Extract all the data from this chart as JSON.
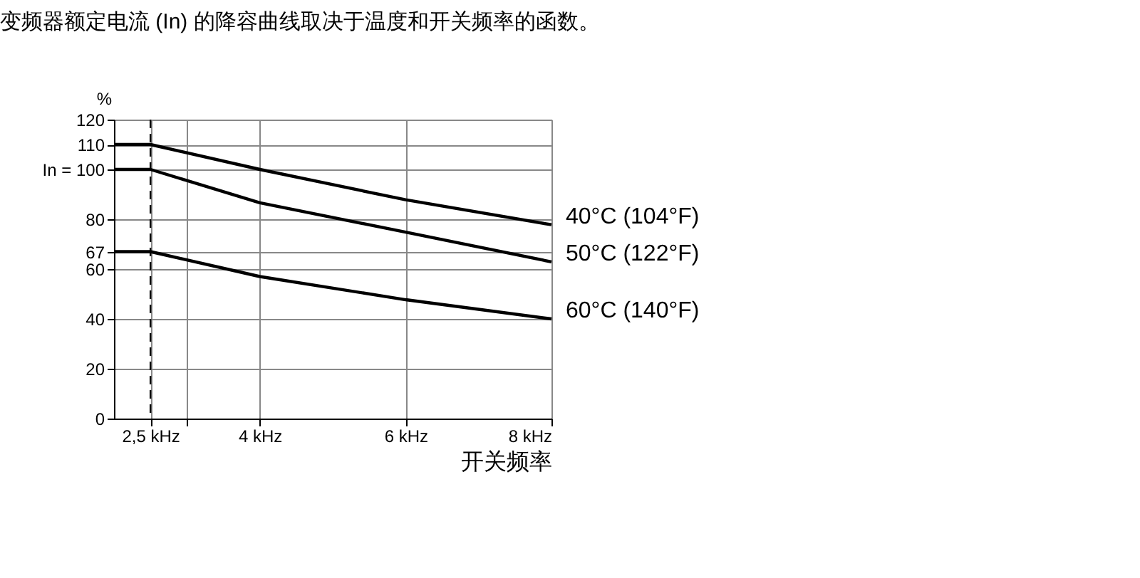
{
  "chart_data": {
    "type": "line",
    "title": "变频器额定电流 (In) 的降容曲线取决于温度和开关频率的函数。",
    "xlabel": "开关频率",
    "ylabel": "%",
    "series": [
      {
        "name": "40°C (104°F)",
        "color": "#000000",
        "x": [
          2,
          2.5,
          4,
          6,
          8
        ],
        "values": [
          110,
          110,
          100,
          87.8,
          77.8
        ]
      },
      {
        "name": "50°C (122°F)",
        "color": "#000000",
        "x": [
          2,
          2.5,
          4,
          6,
          8
        ],
        "values": [
          100,
          100,
          86.6,
          74.8,
          62.9
        ]
      },
      {
        "name": "60°C (140°F)",
        "color": "#000000",
        "x": [
          2,
          2.5,
          4,
          6,
          8
        ],
        "values": [
          67,
          67,
          57,
          47.7,
          40
        ]
      }
    ],
    "xlim": [
      2,
      8
    ],
    "xticks": [
      {
        "value": 2.5,
        "label": "2,5 kHz"
      },
      {
        "value": 3,
        "label": null
      },
      {
        "value": 4,
        "label": "4 kHz"
      },
      {
        "value": 6,
        "label": "6 kHz"
      },
      {
        "value": 8,
        "label": "8 kHz"
      }
    ],
    "ylim": [
      0,
      120
    ],
    "yticks": [
      0,
      20,
      40,
      60,
      67,
      80,
      {
        "value": 100,
        "label": "In = 100"
      },
      110,
      120
    ],
    "ref_lines": [
      {
        "axis": "x",
        "value": 2.5,
        "line_style": "dashed",
        "color": "#000000"
      }
    ],
    "grid": true,
    "legend": false,
    "marker": "none",
    "line_style": "solid"
  }
}
